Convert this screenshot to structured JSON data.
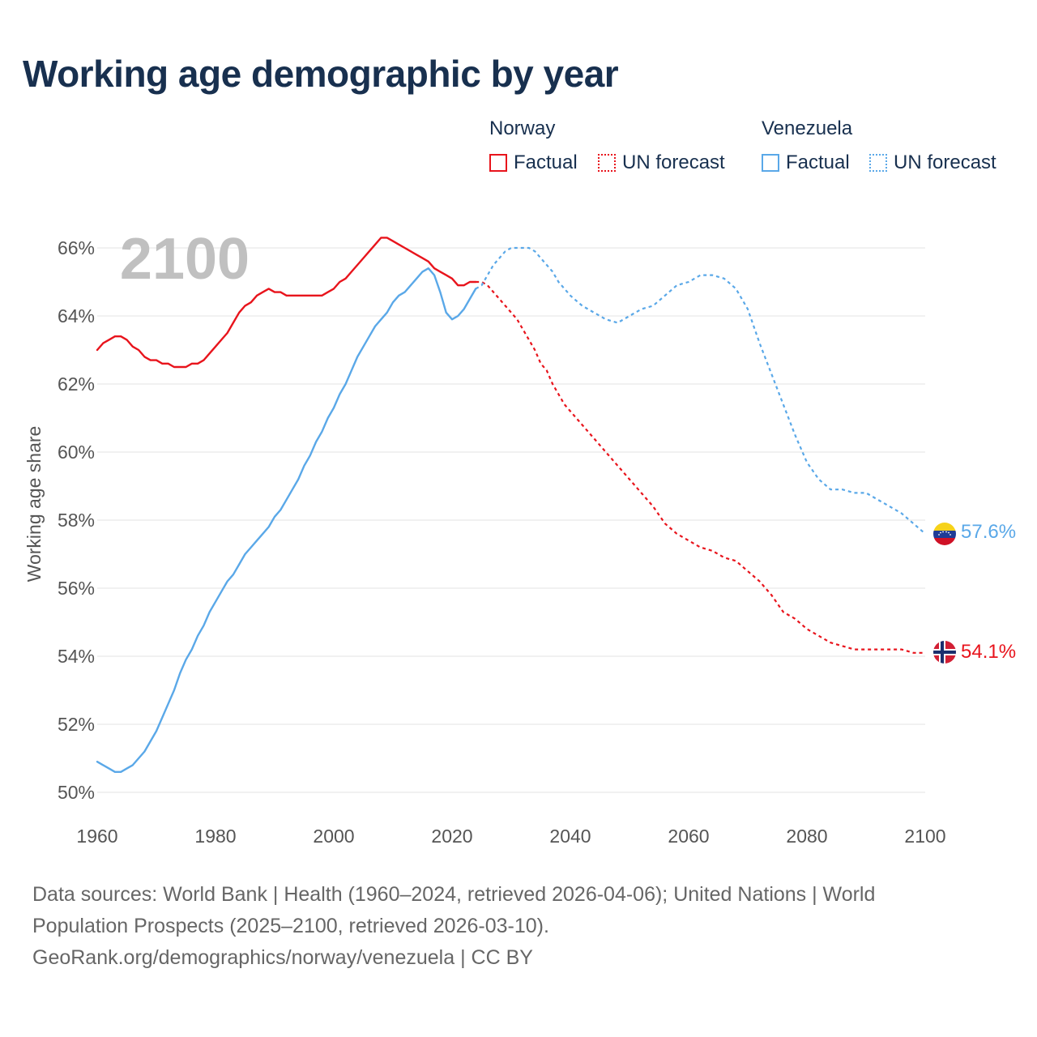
{
  "title": "Working age demographic by year",
  "year_label": "2100",
  "legend": {
    "norway": {
      "name": "Norway",
      "factual": "Factual",
      "forecast": "UN forecast",
      "color": "#e8141c"
    },
    "venezuela": {
      "name": "Venezuela",
      "factual": "Factual",
      "forecast": "UN forecast",
      "color": "#5aa8e8"
    }
  },
  "footer": {
    "line1": "Data sources: World Bank | Health (1960–2024, retrieved 2026-04-06); United Nations | World",
    "line2": "Population Prospects (2025–2100, retrieved 2026-03-10).",
    "line3": "GeoRank.org/demographics/norway/venezuela | CC BY"
  },
  "chart_data": {
    "type": "line",
    "title": "Working age demographic by year",
    "xlabel": "",
    "ylabel": "Working age share",
    "xlim": [
      1960,
      2100
    ],
    "ylim": [
      50,
      66
    ],
    "x_ticks": [
      "1960",
      "1980",
      "2000",
      "2020",
      "2040",
      "2060",
      "2080",
      "2100"
    ],
    "y_ticks": [
      "50%",
      "52%",
      "54%",
      "56%",
      "58%",
      "60%",
      "62%",
      "64%",
      "66%"
    ],
    "grid": true,
    "factual_range": [
      1960,
      2024
    ],
    "forecast_range": [
      2024,
      2100
    ],
    "series": [
      {
        "name": "Norway",
        "color": "#e8141c",
        "end_label": "54.1%",
        "flag": "norway-flag",
        "points": [
          [
            1960,
            63.0
          ],
          [
            1961,
            63.2
          ],
          [
            1962,
            63.3
          ],
          [
            1963,
            63.4
          ],
          [
            1964,
            63.4
          ],
          [
            1965,
            63.3
          ],
          [
            1966,
            63.1
          ],
          [
            1967,
            63.0
          ],
          [
            1968,
            62.8
          ],
          [
            1969,
            62.7
          ],
          [
            1970,
            62.7
          ],
          [
            1971,
            62.6
          ],
          [
            1972,
            62.6
          ],
          [
            1973,
            62.5
          ],
          [
            1974,
            62.5
          ],
          [
            1975,
            62.5
          ],
          [
            1976,
            62.6
          ],
          [
            1977,
            62.6
          ],
          [
            1978,
            62.7
          ],
          [
            1979,
            62.9
          ],
          [
            1980,
            63.1
          ],
          [
            1981,
            63.3
          ],
          [
            1982,
            63.5
          ],
          [
            1983,
            63.8
          ],
          [
            1984,
            64.1
          ],
          [
            1985,
            64.3
          ],
          [
            1986,
            64.4
          ],
          [
            1987,
            64.6
          ],
          [
            1988,
            64.7
          ],
          [
            1989,
            64.8
          ],
          [
            1990,
            64.7
          ],
          [
            1991,
            64.7
          ],
          [
            1992,
            64.6
          ],
          [
            1993,
            64.6
          ],
          [
            1994,
            64.6
          ],
          [
            1995,
            64.6
          ],
          [
            1996,
            64.6
          ],
          [
            1997,
            64.6
          ],
          [
            1998,
            64.6
          ],
          [
            1999,
            64.7
          ],
          [
            2000,
            64.8
          ],
          [
            2001,
            65.0
          ],
          [
            2002,
            65.1
          ],
          [
            2003,
            65.3
          ],
          [
            2004,
            65.5
          ],
          [
            2005,
            65.7
          ],
          [
            2006,
            65.9
          ],
          [
            2007,
            66.1
          ],
          [
            2008,
            66.3
          ],
          [
            2009,
            66.3
          ],
          [
            2010,
            66.2
          ],
          [
            2011,
            66.1
          ],
          [
            2012,
            66.0
          ],
          [
            2013,
            65.9
          ],
          [
            2014,
            65.8
          ],
          [
            2015,
            65.7
          ],
          [
            2016,
            65.6
          ],
          [
            2017,
            65.4
          ],
          [
            2018,
            65.3
          ],
          [
            2019,
            65.2
          ],
          [
            2020,
            65.1
          ],
          [
            2021,
            64.9
          ],
          [
            2022,
            64.9
          ],
          [
            2023,
            65.0
          ],
          [
            2024,
            65.0
          ],
          [
            2025,
            65.0
          ],
          [
            2026,
            64.9
          ],
          [
            2027,
            64.7
          ],
          [
            2028,
            64.5
          ],
          [
            2029,
            64.3
          ],
          [
            2030,
            64.1
          ],
          [
            2031,
            63.9
          ],
          [
            2032,
            63.6
          ],
          [
            2033,
            63.3
          ],
          [
            2034,
            63.0
          ],
          [
            2035,
            62.6
          ],
          [
            2036,
            62.4
          ],
          [
            2037,
            62.0
          ],
          [
            2038,
            61.7
          ],
          [
            2039,
            61.4
          ],
          [
            2040,
            61.2
          ],
          [
            2042,
            60.8
          ],
          [
            2044,
            60.4
          ],
          [
            2046,
            60.0
          ],
          [
            2048,
            59.6
          ],
          [
            2050,
            59.2
          ],
          [
            2052,
            58.8
          ],
          [
            2054,
            58.4
          ],
          [
            2056,
            57.9
          ],
          [
            2058,
            57.6
          ],
          [
            2060,
            57.4
          ],
          [
            2062,
            57.2
          ],
          [
            2064,
            57.1
          ],
          [
            2066,
            56.9
          ],
          [
            2068,
            56.8
          ],
          [
            2070,
            56.5
          ],
          [
            2072,
            56.2
          ],
          [
            2074,
            55.8
          ],
          [
            2076,
            55.3
          ],
          [
            2078,
            55.1
          ],
          [
            2080,
            54.8
          ],
          [
            2082,
            54.6
          ],
          [
            2084,
            54.4
          ],
          [
            2086,
            54.3
          ],
          [
            2088,
            54.2
          ],
          [
            2090,
            54.2
          ],
          [
            2092,
            54.2
          ],
          [
            2094,
            54.2
          ],
          [
            2096,
            54.2
          ],
          [
            2098,
            54.1
          ],
          [
            2100,
            54.1
          ]
        ]
      },
      {
        "name": "Venezuela",
        "color": "#5aa8e8",
        "end_label": "57.6%",
        "flag": "venezuela-flag",
        "points": [
          [
            1960,
            50.9
          ],
          [
            1961,
            50.8
          ],
          [
            1962,
            50.7
          ],
          [
            1963,
            50.6
          ],
          [
            1964,
            50.6
          ],
          [
            1965,
            50.7
          ],
          [
            1966,
            50.8
          ],
          [
            1967,
            51.0
          ],
          [
            1968,
            51.2
          ],
          [
            1969,
            51.5
          ],
          [
            1970,
            51.8
          ],
          [
            1971,
            52.2
          ],
          [
            1972,
            52.6
          ],
          [
            1973,
            53.0
          ],
          [
            1974,
            53.5
          ],
          [
            1975,
            53.9
          ],
          [
            1976,
            54.2
          ],
          [
            1977,
            54.6
          ],
          [
            1978,
            54.9
          ],
          [
            1979,
            55.3
          ],
          [
            1980,
            55.6
          ],
          [
            1981,
            55.9
          ],
          [
            1982,
            56.2
          ],
          [
            1983,
            56.4
          ],
          [
            1984,
            56.7
          ],
          [
            1985,
            57.0
          ],
          [
            1986,
            57.2
          ],
          [
            1987,
            57.4
          ],
          [
            1988,
            57.6
          ],
          [
            1989,
            57.8
          ],
          [
            1990,
            58.1
          ],
          [
            1991,
            58.3
          ],
          [
            1992,
            58.6
          ],
          [
            1993,
            58.9
          ],
          [
            1994,
            59.2
          ],
          [
            1995,
            59.6
          ],
          [
            1996,
            59.9
          ],
          [
            1997,
            60.3
          ],
          [
            1998,
            60.6
          ],
          [
            1999,
            61.0
          ],
          [
            2000,
            61.3
          ],
          [
            2001,
            61.7
          ],
          [
            2002,
            62.0
          ],
          [
            2003,
            62.4
          ],
          [
            2004,
            62.8
          ],
          [
            2005,
            63.1
          ],
          [
            2006,
            63.4
          ],
          [
            2007,
            63.7
          ],
          [
            2008,
            63.9
          ],
          [
            2009,
            64.1
          ],
          [
            2010,
            64.4
          ],
          [
            2011,
            64.6
          ],
          [
            2012,
            64.7
          ],
          [
            2013,
            64.9
          ],
          [
            2014,
            65.1
          ],
          [
            2015,
            65.3
          ],
          [
            2016,
            65.4
          ],
          [
            2017,
            65.2
          ],
          [
            2018,
            64.7
          ],
          [
            2019,
            64.1
          ],
          [
            2020,
            63.9
          ],
          [
            2021,
            64.0
          ],
          [
            2022,
            64.2
          ],
          [
            2023,
            64.5
          ],
          [
            2024,
            64.8
          ],
          [
            2025,
            64.9
          ],
          [
            2026,
            65.2
          ],
          [
            2027,
            65.5
          ],
          [
            2028,
            65.7
          ],
          [
            2029,
            65.9
          ],
          [
            2030,
            66.0
          ],
          [
            2031,
            66.0
          ],
          [
            2032,
            66.0
          ],
          [
            2033,
            66.0
          ],
          [
            2034,
            65.9
          ],
          [
            2035,
            65.7
          ],
          [
            2036,
            65.5
          ],
          [
            2037,
            65.3
          ],
          [
            2038,
            65.0
          ],
          [
            2039,
            64.8
          ],
          [
            2040,
            64.6
          ],
          [
            2042,
            64.3
          ],
          [
            2044,
            64.1
          ],
          [
            2046,
            63.9
          ],
          [
            2048,
            63.8
          ],
          [
            2050,
            64.0
          ],
          [
            2052,
            64.2
          ],
          [
            2054,
            64.3
          ],
          [
            2056,
            64.6
          ],
          [
            2058,
            64.9
          ],
          [
            2060,
            65.0
          ],
          [
            2062,
            65.2
          ],
          [
            2064,
            65.2
          ],
          [
            2066,
            65.1
          ],
          [
            2068,
            64.8
          ],
          [
            2070,
            64.2
          ],
          [
            2072,
            63.2
          ],
          [
            2074,
            62.3
          ],
          [
            2076,
            61.4
          ],
          [
            2078,
            60.5
          ],
          [
            2080,
            59.7
          ],
          [
            2082,
            59.2
          ],
          [
            2084,
            58.9
          ],
          [
            2086,
            58.9
          ],
          [
            2088,
            58.8
          ],
          [
            2090,
            58.8
          ],
          [
            2092,
            58.6
          ],
          [
            2094,
            58.4
          ],
          [
            2096,
            58.2
          ],
          [
            2098,
            57.9
          ],
          [
            2100,
            57.6
          ]
        ]
      }
    ]
  }
}
